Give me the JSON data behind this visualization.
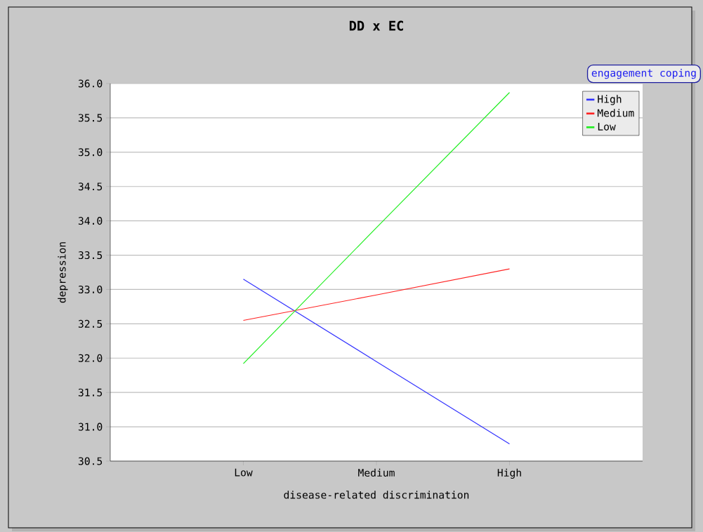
{
  "chart_data": {
    "type": "line",
    "title": "DD x EC",
    "xlabel": "disease-related discrimination",
    "ylabel": "depression",
    "legend_title": "engagement coping",
    "categories": [
      "Low",
      "Medium",
      "High"
    ],
    "series": [
      {
        "name": "High",
        "color": "#3333ff",
        "values": [
          33.15,
          31.95,
          30.75
        ]
      },
      {
        "name": "Medium",
        "color": "#ff2222",
        "values": [
          32.55,
          32.92,
          33.3
        ]
      },
      {
        "name": "Low",
        "color": "#22ee22",
        "values": [
          31.92,
          33.9,
          35.87
        ]
      }
    ],
    "ylim": [
      30.5,
      36.0
    ],
    "yticks": [
      {
        "value": 30.5,
        "label": "30.5"
      },
      {
        "value": 31,
        "label": "31.0"
      },
      {
        "value": 31.5,
        "label": "31.5"
      },
      {
        "value": 32,
        "label": "32.0"
      },
      {
        "value": 32.5,
        "label": "32.5"
      },
      {
        "value": 33,
        "label": "33.0"
      },
      {
        "value": 33.5,
        "label": "33.5"
      },
      {
        "value": 34,
        "label": "34.0"
      },
      {
        "value": 34.5,
        "label": "34.5"
      },
      {
        "value": 35,
        "label": "35.0"
      },
      {
        "value": 35.5,
        "label": "35.5"
      },
      {
        "value": 36,
        "label": "36.0"
      }
    ],
    "grid": "y",
    "legend": "top right",
    "marker": "none",
    "line_style": "solid"
  }
}
